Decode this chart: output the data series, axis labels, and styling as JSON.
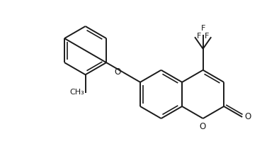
{
  "background_color": "#ffffff",
  "line_color": "#1a1a1a",
  "line_width": 1.4,
  "font_size": 8.5,
  "figsize": [
    3.94,
    2.34
  ],
  "dpi": 100,
  "xlim": [
    0,
    10
  ],
  "ylim": [
    0,
    6
  ]
}
